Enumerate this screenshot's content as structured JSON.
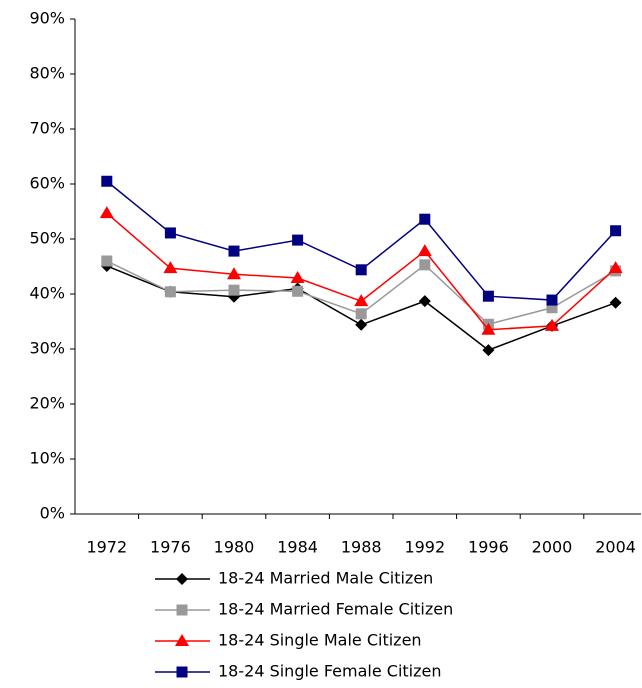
{
  "chart_data": {
    "type": "line",
    "categories": [
      "1972",
      "1976",
      "1980",
      "1984",
      "1988",
      "1992",
      "1996",
      "2000",
      "2004"
    ],
    "series": [
      {
        "name": "18-24 Married Male Citizen",
        "color": "#000000",
        "marker": "diamond",
        "values": [
          45.1,
          40.4,
          39.5,
          41,
          34.4,
          38.7,
          29.8,
          34.2,
          38.4
        ]
      },
      {
        "name": "18-24 Married Female Citizen",
        "color": "#999999",
        "marker": "square",
        "values": [
          46,
          40.4,
          40.7,
          40.5,
          36.4,
          45.3,
          34.5,
          37.5,
          44.2
        ]
      },
      {
        "name": "18-24 Single Male Citizen",
        "color": "#ff0000",
        "marker": "triangle",
        "values": [
          54.7,
          44.7,
          43.6,
          42.9,
          38.7,
          47.8,
          33.5,
          34.2,
          44.7
        ]
      },
      {
        "name": "18-24 Single Female Citizen",
        "color": "#000080",
        "marker": "square",
        "values": [
          60.5,
          51.1,
          47.8,
          49.8,
          44.4,
          53.6,
          39.6,
          38.9,
          51.5
        ]
      }
    ],
    "ylim": [
      0,
      90
    ],
    "yticks": [
      {
        "value": 0,
        "label": "0%"
      },
      {
        "value": 10,
        "label": "10%"
      },
      {
        "value": 20,
        "label": "20%"
      },
      {
        "value": 30,
        "label": "30%"
      },
      {
        "value": 40,
        "label": "40%"
      },
      {
        "value": 50,
        "label": "50%"
      },
      {
        "value": 60,
        "label": "60%"
      },
      {
        "value": 70,
        "label": "70%"
      },
      {
        "value": 80,
        "label": "80%"
      },
      {
        "value": 90,
        "label": "90%"
      }
    ],
    "legend": "bottom"
  }
}
